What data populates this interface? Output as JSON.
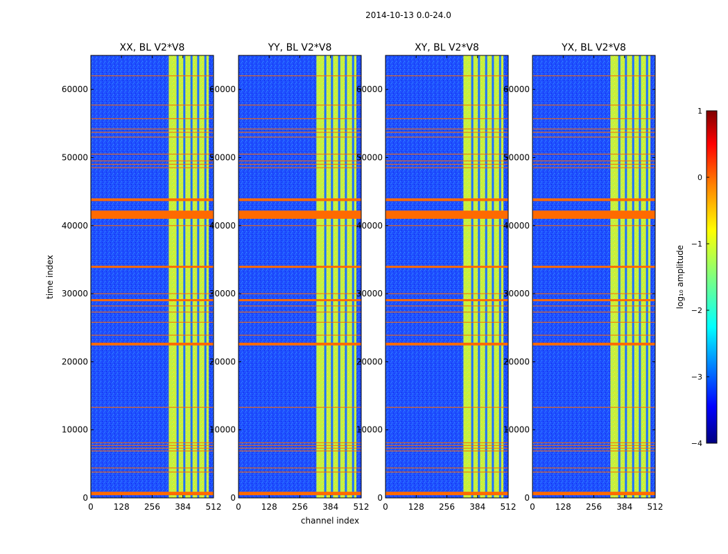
{
  "figure_title": "2014-10-13 0.0-24.0",
  "colors": {
    "background_field": "#1f4fff",
    "band_field": "#c8f03a",
    "flag_line": "#ff6a00",
    "colormap": [
      "#00007f",
      "#0000ff",
      "#007fff",
      "#00ffff",
      "#7fff7f",
      "#ffff00",
      "#ff7f00",
      "#ff0000",
      "#7f0000"
    ]
  },
  "chart_data": {
    "type": "heatmap",
    "xlabel": "channel index",
    "ylabel": "time index",
    "xlim": [
      0,
      512
    ],
    "ylim": [
      0,
      65000
    ],
    "xticks": [
      0,
      128,
      256,
      384,
      512
    ],
    "yticks": [
      0,
      10000,
      20000,
      30000,
      40000,
      50000,
      60000
    ],
    "panels": [
      {
        "title": "XX, BL V2*V8",
        "show_ylabel": true
      },
      {
        "title": "YY, BL V2*V8",
        "show_ylabel": false
      },
      {
        "title": "XY, BL V2*V8",
        "show_ylabel": false
      },
      {
        "title": "YX, BL V2*V8",
        "show_ylabel": false
      }
    ],
    "bright_band_channels": [
      325,
      512
    ],
    "dark_channel_lines": [
      362,
      390,
      420,
      448,
      478
    ],
    "flagged_time_rows": {
      "thick": [
        [
          400,
          900
        ],
        [
          41000,
          42200
        ],
        [
          43600,
          44000
        ],
        [
          33800,
          34100
        ],
        [
          22400,
          22800
        ],
        [
          28900,
          29200
        ]
      ],
      "thin": [
        3800,
        4400,
        6900,
        7300,
        7700,
        8100,
        13300,
        23900,
        25800,
        27300,
        28200,
        30000,
        40000,
        48500,
        49000,
        49500,
        50500,
        53000,
        53700,
        54200,
        55700,
        57700,
        62000
      ]
    },
    "colorbar": {
      "label": "log₁₀ amplitude",
      "range": [
        -4,
        1
      ],
      "ticks": [
        1,
        0,
        -1,
        -2,
        -3,
        -4
      ]
    }
  }
}
